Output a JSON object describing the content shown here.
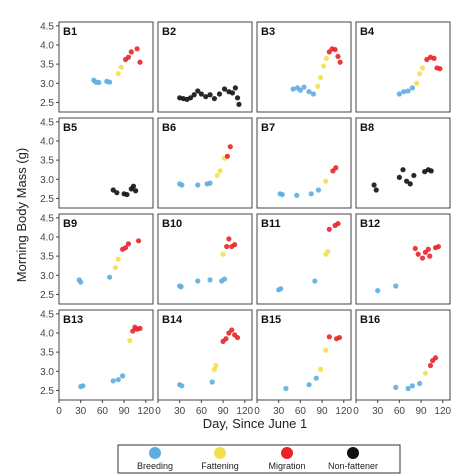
{
  "figure": {
    "ylabel": "Morning Body Mass (g)",
    "xlabel": "Day, Since June 1"
  },
  "legend": {
    "items": [
      {
        "label": "Breeding",
        "color": "#5dade2"
      },
      {
        "label": "Fattening",
        "color": "#f4e04d"
      },
      {
        "label": "Migration",
        "color": "#e8232a"
      },
      {
        "label": "Non-fattener",
        "color": "#111111"
      }
    ]
  },
  "chart_data": {
    "type": "scatter",
    "grid": false,
    "xlim": [
      0,
      130
    ],
    "ylim": [
      2.25,
      4.6
    ],
    "x_ticks": [
      0,
      30,
      60,
      90,
      120
    ],
    "x_tick_labels": [
      "0",
      "30",
      "60",
      "90",
      "120"
    ],
    "y_ticks": [
      2.5,
      3.0,
      3.5,
      4.0,
      4.5
    ],
    "y_tick_labels": [
      "2.5",
      "3.0",
      "3.5",
      "4.0",
      "4.5"
    ],
    "category_colors": {
      "Breeding": "#5dade2",
      "Fattening": "#f4e04d",
      "Migration": "#e8232a",
      "Non-fattener": "#111111"
    },
    "panels": [
      {
        "label": "B1",
        "points": [
          {
            "x": 48,
            "y": 3.08,
            "c": "Breeding"
          },
          {
            "x": 51,
            "y": 3.03,
            "c": "Breeding"
          },
          {
            "x": 55,
            "y": 3.02,
            "c": "Breeding"
          },
          {
            "x": 66,
            "y": 3.05,
            "c": "Breeding"
          },
          {
            "x": 70,
            "y": 3.03,
            "c": "Breeding"
          },
          {
            "x": 82,
            "y": 3.25,
            "c": "Fattening"
          },
          {
            "x": 86,
            "y": 3.42,
            "c": "Fattening"
          },
          {
            "x": 92,
            "y": 3.62,
            "c": "Migration"
          },
          {
            "x": 96,
            "y": 3.68,
            "c": "Migration"
          },
          {
            "x": 100,
            "y": 3.82,
            "c": "Migration"
          },
          {
            "x": 108,
            "y": 3.9,
            "c": "Migration"
          },
          {
            "x": 112,
            "y": 3.55,
            "c": "Migration"
          }
        ]
      },
      {
        "label": "B2",
        "points": [
          {
            "x": 30,
            "y": 2.62,
            "c": "Non-fattener"
          },
          {
            "x": 35,
            "y": 2.6,
            "c": "Non-fattener"
          },
          {
            "x": 40,
            "y": 2.58,
            "c": "Non-fattener"
          },
          {
            "x": 45,
            "y": 2.62,
            "c": "Non-fattener"
          },
          {
            "x": 50,
            "y": 2.7,
            "c": "Non-fattener"
          },
          {
            "x": 55,
            "y": 2.8,
            "c": "Non-fattener"
          },
          {
            "x": 60,
            "y": 2.72,
            "c": "Non-fattener"
          },
          {
            "x": 66,
            "y": 2.65,
            "c": "Non-fattener"
          },
          {
            "x": 72,
            "y": 2.7,
            "c": "Non-fattener"
          },
          {
            "x": 78,
            "y": 2.6,
            "c": "Non-fattener"
          },
          {
            "x": 85,
            "y": 2.72,
            "c": "Non-fattener"
          },
          {
            "x": 92,
            "y": 2.85,
            "c": "Non-fattener"
          },
          {
            "x": 98,
            "y": 2.78,
            "c": "Non-fattener"
          },
          {
            "x": 103,
            "y": 2.75,
            "c": "Non-fattener"
          },
          {
            "x": 107,
            "y": 2.88,
            "c": "Non-fattener"
          },
          {
            "x": 110,
            "y": 2.62,
            "c": "Non-fattener"
          },
          {
            "x": 112,
            "y": 2.45,
            "c": "Non-fattener"
          }
        ]
      },
      {
        "label": "B3",
        "points": [
          {
            "x": 50,
            "y": 2.85,
            "c": "Breeding"
          },
          {
            "x": 56,
            "y": 2.88,
            "c": "Breeding"
          },
          {
            "x": 60,
            "y": 2.82,
            "c": "Breeding"
          },
          {
            "x": 65,
            "y": 2.9,
            "c": "Breeding"
          },
          {
            "x": 72,
            "y": 2.78,
            "c": "Breeding"
          },
          {
            "x": 78,
            "y": 2.72,
            "c": "Breeding"
          },
          {
            "x": 84,
            "y": 2.92,
            "c": "Fattening"
          },
          {
            "x": 88,
            "y": 3.15,
            "c": "Fattening"
          },
          {
            "x": 92,
            "y": 3.45,
            "c": "Fattening"
          },
          {
            "x": 96,
            "y": 3.65,
            "c": "Fattening"
          },
          {
            "x": 100,
            "y": 3.82,
            "c": "Migration"
          },
          {
            "x": 104,
            "y": 3.9,
            "c": "Migration"
          },
          {
            "x": 108,
            "y": 3.88,
            "c": "Migration"
          },
          {
            "x": 112,
            "y": 3.7,
            "c": "Migration"
          },
          {
            "x": 115,
            "y": 3.55,
            "c": "Migration"
          }
        ]
      },
      {
        "label": "B4",
        "points": [
          {
            "x": 60,
            "y": 2.72,
            "c": "Breeding"
          },
          {
            "x": 66,
            "y": 2.78,
            "c": "Breeding"
          },
          {
            "x": 72,
            "y": 2.8,
            "c": "Breeding"
          },
          {
            "x": 78,
            "y": 2.88,
            "c": "Breeding"
          },
          {
            "x": 84,
            "y": 3.0,
            "c": "Fattening"
          },
          {
            "x": 88,
            "y": 3.25,
            "c": "Fattening"
          },
          {
            "x": 92,
            "y": 3.4,
            "c": "Fattening"
          },
          {
            "x": 98,
            "y": 3.62,
            "c": "Migration"
          },
          {
            "x": 103,
            "y": 3.68,
            "c": "Migration"
          },
          {
            "x": 108,
            "y": 3.65,
            "c": "Migration"
          },
          {
            "x": 112,
            "y": 3.4,
            "c": "Migration"
          },
          {
            "x": 116,
            "y": 3.38,
            "c": "Migration"
          }
        ]
      },
      {
        "label": "B5",
        "points": [
          {
            "x": 75,
            "y": 2.72,
            "c": "Non-fattener"
          },
          {
            "x": 80,
            "y": 2.65,
            "c": "Non-fattener"
          },
          {
            "x": 90,
            "y": 2.62,
            "c": "Non-fattener"
          },
          {
            "x": 94,
            "y": 2.6,
            "c": "Non-fattener"
          },
          {
            "x": 100,
            "y": 2.75,
            "c": "Non-fattener"
          },
          {
            "x": 103,
            "y": 2.82,
            "c": "Non-fattener"
          },
          {
            "x": 106,
            "y": 2.7,
            "c": "Non-fattener"
          }
        ]
      },
      {
        "label": "B6",
        "points": [
          {
            "x": 30,
            "y": 2.88,
            "c": "Breeding"
          },
          {
            "x": 33,
            "y": 2.85,
            "c": "Breeding"
          },
          {
            "x": 55,
            "y": 2.85,
            "c": "Breeding"
          },
          {
            "x": 68,
            "y": 2.88,
            "c": "Breeding"
          },
          {
            "x": 72,
            "y": 2.9,
            "c": "Breeding"
          },
          {
            "x": 82,
            "y": 3.1,
            "c": "Fattening"
          },
          {
            "x": 86,
            "y": 3.22,
            "c": "Fattening"
          },
          {
            "x": 92,
            "y": 3.55,
            "c": "Fattening"
          },
          {
            "x": 96,
            "y": 3.6,
            "c": "Migration"
          },
          {
            "x": 100,
            "y": 3.85,
            "c": "Migration"
          }
        ]
      },
      {
        "label": "B7",
        "points": [
          {
            "x": 32,
            "y": 2.62,
            "c": "Breeding"
          },
          {
            "x": 35,
            "y": 2.6,
            "c": "Breeding"
          },
          {
            "x": 55,
            "y": 2.58,
            "c": "Breeding"
          },
          {
            "x": 75,
            "y": 2.62,
            "c": "Breeding"
          },
          {
            "x": 85,
            "y": 2.72,
            "c": "Breeding"
          },
          {
            "x": 95,
            "y": 2.95,
            "c": "Fattening"
          },
          {
            "x": 105,
            "y": 3.22,
            "c": "Migration"
          },
          {
            "x": 109,
            "y": 3.3,
            "c": "Migration"
          }
        ]
      },
      {
        "label": "B8",
        "points": [
          {
            "x": 25,
            "y": 2.85,
            "c": "Non-fattener"
          },
          {
            "x": 28,
            "y": 2.72,
            "c": "Non-fattener"
          },
          {
            "x": 60,
            "y": 3.05,
            "c": "Non-fattener"
          },
          {
            "x": 65,
            "y": 3.25,
            "c": "Non-fattener"
          },
          {
            "x": 70,
            "y": 2.95,
            "c": "Non-fattener"
          },
          {
            "x": 75,
            "y": 2.88,
            "c": "Non-fattener"
          },
          {
            "x": 80,
            "y": 3.1,
            "c": "Non-fattener"
          },
          {
            "x": 95,
            "y": 3.2,
            "c": "Non-fattener"
          },
          {
            "x": 100,
            "y": 3.25,
            "c": "Non-fattener"
          },
          {
            "x": 104,
            "y": 3.22,
            "c": "Non-fattener"
          }
        ]
      },
      {
        "label": "B9",
        "points": [
          {
            "x": 28,
            "y": 2.88,
            "c": "Breeding"
          },
          {
            "x": 30,
            "y": 2.82,
            "c": "Breeding"
          },
          {
            "x": 70,
            "y": 2.95,
            "c": "Breeding"
          },
          {
            "x": 78,
            "y": 3.2,
            "c": "Fattening"
          },
          {
            "x": 82,
            "y": 3.42,
            "c": "Fattening"
          },
          {
            "x": 88,
            "y": 3.68,
            "c": "Migration"
          },
          {
            "x": 92,
            "y": 3.72,
            "c": "Migration"
          },
          {
            "x": 96,
            "y": 3.82,
            "c": "Migration"
          },
          {
            "x": 110,
            "y": 3.9,
            "c": "Migration"
          }
        ]
      },
      {
        "label": "B10",
        "points": [
          {
            "x": 30,
            "y": 2.72,
            "c": "Breeding"
          },
          {
            "x": 32,
            "y": 2.7,
            "c": "Breeding"
          },
          {
            "x": 55,
            "y": 2.85,
            "c": "Breeding"
          },
          {
            "x": 72,
            "y": 2.88,
            "c": "Breeding"
          },
          {
            "x": 88,
            "y": 2.85,
            "c": "Breeding"
          },
          {
            "x": 92,
            "y": 2.9,
            "c": "Breeding"
          },
          {
            "x": 90,
            "y": 3.55,
            "c": "Fattening"
          },
          {
            "x": 95,
            "y": 3.75,
            "c": "Migration"
          },
          {
            "x": 98,
            "y": 3.95,
            "c": "Migration"
          },
          {
            "x": 102,
            "y": 3.75,
            "c": "Migration"
          },
          {
            "x": 106,
            "y": 3.8,
            "c": "Migration"
          }
        ]
      },
      {
        "label": "B11",
        "points": [
          {
            "x": 30,
            "y": 2.62,
            "c": "Breeding"
          },
          {
            "x": 33,
            "y": 2.65,
            "c": "Breeding"
          },
          {
            "x": 80,
            "y": 2.85,
            "c": "Breeding"
          },
          {
            "x": 95,
            "y": 3.55,
            "c": "Fattening"
          },
          {
            "x": 98,
            "y": 3.62,
            "c": "Fattening"
          },
          {
            "x": 100,
            "y": 4.2,
            "c": "Migration"
          },
          {
            "x": 108,
            "y": 4.3,
            "c": "Migration"
          },
          {
            "x": 112,
            "y": 4.35,
            "c": "Migration"
          }
        ]
      },
      {
        "label": "B12",
        "points": [
          {
            "x": 30,
            "y": 2.6,
            "c": "Breeding"
          },
          {
            "x": 55,
            "y": 2.72,
            "c": "Breeding"
          },
          {
            "x": 82,
            "y": 3.7,
            "c": "Migration"
          },
          {
            "x": 86,
            "y": 3.55,
            "c": "Migration"
          },
          {
            "x": 92,
            "y": 3.45,
            "c": "Migration"
          },
          {
            "x": 96,
            "y": 3.6,
            "c": "Migration"
          },
          {
            "x": 100,
            "y": 3.68,
            "c": "Migration"
          },
          {
            "x": 102,
            "y": 3.5,
            "c": "Migration"
          },
          {
            "x": 110,
            "y": 3.72,
            "c": "Migration"
          },
          {
            "x": 114,
            "y": 3.75,
            "c": "Migration"
          }
        ]
      },
      {
        "label": "B13",
        "points": [
          {
            "x": 30,
            "y": 2.6,
            "c": "Breeding"
          },
          {
            "x": 33,
            "y": 2.62,
            "c": "Breeding"
          },
          {
            "x": 75,
            "y": 2.75,
            "c": "Breeding"
          },
          {
            "x": 82,
            "y": 2.78,
            "c": "Breeding"
          },
          {
            "x": 88,
            "y": 2.88,
            "c": "Breeding"
          },
          {
            "x": 98,
            "y": 3.8,
            "c": "Fattening"
          },
          {
            "x": 102,
            "y": 4.05,
            "c": "Migration"
          },
          {
            "x": 105,
            "y": 4.15,
            "c": "Migration"
          },
          {
            "x": 108,
            "y": 4.1,
            "c": "Migration"
          },
          {
            "x": 112,
            "y": 4.12,
            "c": "Migration"
          }
        ]
      },
      {
        "label": "B14",
        "points": [
          {
            "x": 30,
            "y": 2.65,
            "c": "Breeding"
          },
          {
            "x": 33,
            "y": 2.62,
            "c": "Breeding"
          },
          {
            "x": 75,
            "y": 2.72,
            "c": "Breeding"
          },
          {
            "x": 78,
            "y": 3.05,
            "c": "Fattening"
          },
          {
            "x": 80,
            "y": 3.15,
            "c": "Fattening"
          },
          {
            "x": 90,
            "y": 3.78,
            "c": "Migration"
          },
          {
            "x": 94,
            "y": 3.85,
            "c": "Migration"
          },
          {
            "x": 98,
            "y": 4.0,
            "c": "Migration"
          },
          {
            "x": 102,
            "y": 4.08,
            "c": "Migration"
          },
          {
            "x": 106,
            "y": 3.95,
            "c": "Migration"
          },
          {
            "x": 110,
            "y": 3.88,
            "c": "Migration"
          }
        ]
      },
      {
        "label": "B15",
        "points": [
          {
            "x": 40,
            "y": 2.55,
            "c": "Breeding"
          },
          {
            "x": 72,
            "y": 2.65,
            "c": "Breeding"
          },
          {
            "x": 82,
            "y": 2.82,
            "c": "Breeding"
          },
          {
            "x": 88,
            "y": 3.05,
            "c": "Fattening"
          },
          {
            "x": 95,
            "y": 3.55,
            "c": "Fattening"
          },
          {
            "x": 100,
            "y": 3.9,
            "c": "Migration"
          },
          {
            "x": 110,
            "y": 3.85,
            "c": "Migration"
          },
          {
            "x": 114,
            "y": 3.88,
            "c": "Migration"
          }
        ]
      },
      {
        "label": "B16",
        "points": [
          {
            "x": 55,
            "y": 2.58,
            "c": "Breeding"
          },
          {
            "x": 72,
            "y": 2.55,
            "c": "Breeding"
          },
          {
            "x": 78,
            "y": 2.62,
            "c": "Breeding"
          },
          {
            "x": 88,
            "y": 2.68,
            "c": "Breeding"
          },
          {
            "x": 96,
            "y": 2.95,
            "c": "Fattening"
          },
          {
            "x": 103,
            "y": 3.15,
            "c": "Migration"
          },
          {
            "x": 106,
            "y": 3.28,
            "c": "Migration"
          },
          {
            "x": 110,
            "y": 3.35,
            "c": "Migration"
          }
        ]
      }
    ]
  }
}
